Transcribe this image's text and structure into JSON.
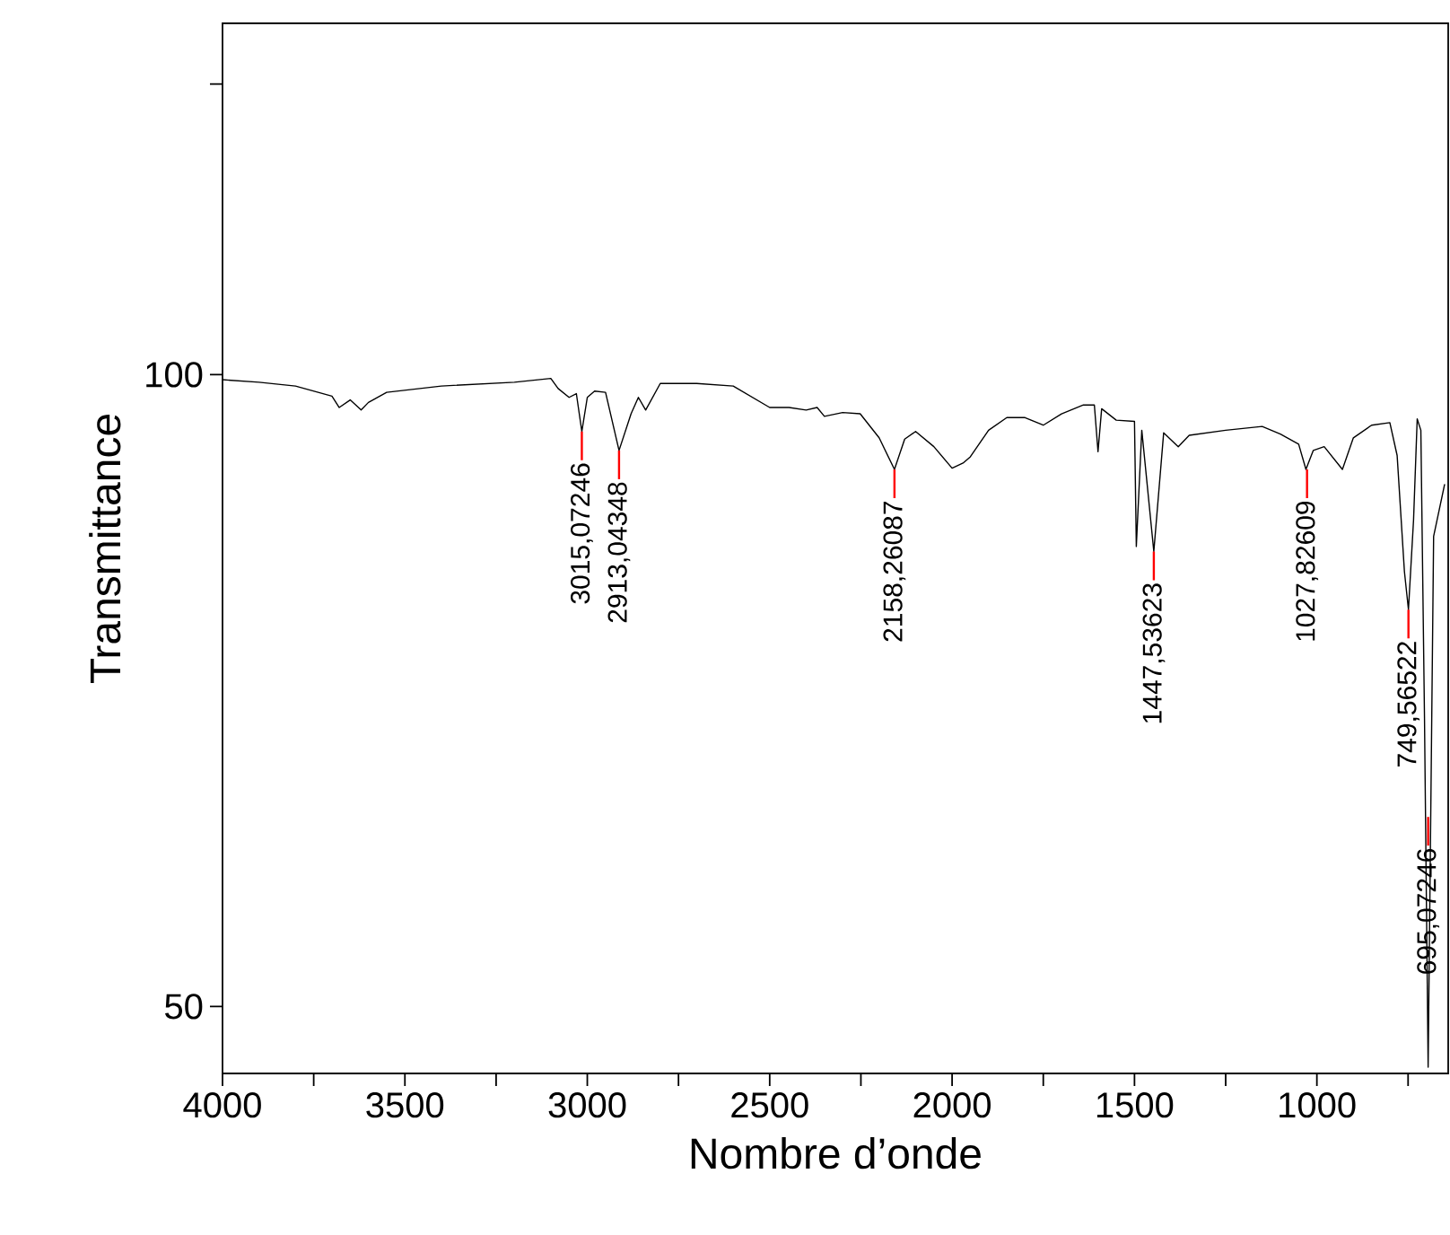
{
  "chart_data": {
    "type": "line",
    "xlabel": "Nombre d’onde",
    "ylabel": "Transmittance",
    "xlim": [
      4000,
      640
    ],
    "ylim": [
      44.7,
      127.8
    ],
    "xticks": [
      4000,
      {
        "value": 3750,
        "label": null
      },
      3500,
      {
        "value": 3250,
        "label": null
      },
      3000,
      {
        "value": 2750,
        "label": null
      },
      2500,
      {
        "value": 2250,
        "label": null
      },
      2000,
      {
        "value": 1750,
        "label": null
      },
      1500,
      {
        "value": 1250,
        "label": null
      },
      1000,
      {
        "value": 750,
        "label": null
      }
    ],
    "yticks": [
      50,
      100,
      {
        "value": 123,
        "label": null
      }
    ],
    "series": [
      {
        "color": "#000000",
        "x": [
          4000,
          3900,
          3800,
          3700,
          3680,
          3650,
          3620,
          3600,
          3550,
          3400,
          3200,
          3100,
          3080,
          3050,
          3030,
          3015,
          3000,
          2980,
          2950,
          2913,
          2880,
          2860,
          2840,
          2800,
          2700,
          2600,
          2500,
          2447,
          2400,
          2370,
          2350,
          2300,
          2252,
          2200,
          2158,
          2130,
          2100,
          2050,
          2000,
          1970,
          1950,
          1900,
          1850,
          1800,
          1750,
          1700,
          1640,
          1610,
          1600,
          1590,
          1550,
          1500,
          1495,
          1480,
          1447,
          1420,
          1380,
          1350,
          1250,
          1150,
          1100,
          1050,
          1030,
          1010,
          980,
          930,
          900,
          850,
          800,
          780,
          760,
          749,
          735,
          725,
          715,
          705,
          695,
          680,
          650
        ],
        "values": [
          99.6,
          99.4,
          99.1,
          98.3,
          97.4,
          98,
          97.2,
          97.8,
          98.6,
          99.1,
          99.4,
          99.7,
          98.9,
          98.2,
          98.5,
          95.5,
          98.2,
          98.7,
          98.6,
          94,
          96.9,
          98.2,
          97.2,
          99.3,
          99.3,
          99.1,
          97.4,
          97.4,
          97.2,
          97.4,
          96.7,
          97.0,
          96.9,
          95,
          92.5,
          94.9,
          95.5,
          94.3,
          92.6,
          93,
          93.5,
          95.6,
          96.6,
          96.6,
          96,
          96.9,
          97.6,
          97.6,
          93.9,
          97.3,
          96.4,
          96.3,
          86.4,
          95.6,
          86,
          95.4,
          94.3,
          95.2,
          95.6,
          95.9,
          95.3,
          94.5,
          92.5,
          94,
          94.3,
          92.5,
          95,
          96,
          96.2,
          93.6,
          84.4,
          81.4,
          88.5,
          96.5,
          95.6,
          72.8,
          45.2,
          87.2,
          91.3
        ]
      }
    ],
    "annotations": [
      {
        "text": "3015,07246",
        "x": 3015,
        "y": 95.5
      },
      {
        "text": "2913,04348",
        "x": 2913,
        "y": 94
      },
      {
        "text": "2158,26087",
        "x": 2158,
        "y": 92.5
      },
      {
        "text": "1447,53623",
        "x": 1447,
        "y": 86
      },
      {
        "text": "1027,82609",
        "x": 1027,
        "y": 92.5
      },
      {
        "text": "749,56522",
        "x": 749,
        "y": 81.4
      },
      {
        "text": "695,07246",
        "x": 695,
        "y": 65
      }
    ]
  }
}
